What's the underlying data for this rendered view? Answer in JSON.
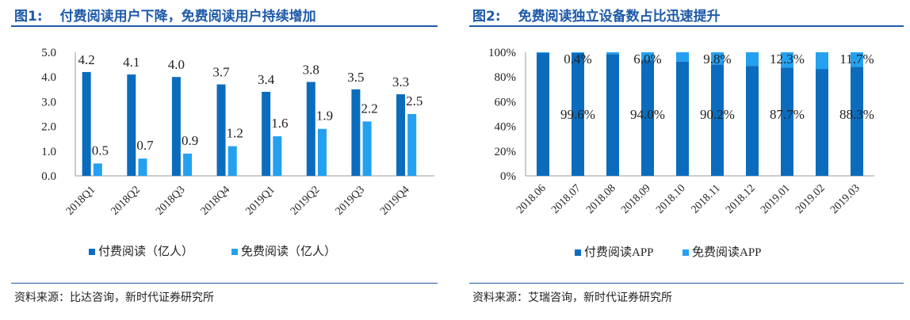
{
  "colors": {
    "accent": "#1e5aa8",
    "dark_blue": "#0b6cbd",
    "light_blue": "#24a0f0"
  },
  "left": {
    "fig_num": "图1:",
    "title": "付费阅读用户下降，免费阅读用户持续增加",
    "source": "资料来源：比达咨询，新时代证券研究所"
  },
  "right": {
    "fig_num": "图2:",
    "title": "免费阅读独立设备数占比迅速提升",
    "source": "资料来源：艾瑞咨询，新时代证券研究所"
  },
  "chart_data": [
    {
      "type": "bar",
      "categories": [
        "2018Q1",
        "2018Q2",
        "2018Q3",
        "2018Q4",
        "2019Q1",
        "2019Q2",
        "2019Q3",
        "2019Q4"
      ],
      "series": [
        {
          "name": "付费阅读（亿人）",
          "values": [
            4.2,
            4.1,
            4.0,
            3.7,
            3.4,
            3.8,
            3.5,
            3.3
          ],
          "color": "#0b6cbd"
        },
        {
          "name": "免费阅读（亿人）",
          "values": [
            0.5,
            0.7,
            0.9,
            1.2,
            1.6,
            1.9,
            2.2,
            2.5
          ],
          "color": "#24a0f0"
        }
      ],
      "ylim": [
        0,
        5
      ],
      "y_ticks": [
        "0.0",
        "1.0",
        "2.0",
        "3.0",
        "4.0",
        "5.0"
      ],
      "grid": false,
      "legend_position": "bottom"
    },
    {
      "type": "bar",
      "stacked": true,
      "categories": [
        "2018.06",
        "2018.07",
        "2018.08",
        "2018.09",
        "2018.10",
        "2018.11",
        "2018.12",
        "2019.01",
        "2019.02",
        "2019.03"
      ],
      "series": [
        {
          "name": "付费阅读APP",
          "values": [
            99.6,
            99.6,
            98.5,
            94.0,
            92.5,
            90.2,
            89.0,
            87.7,
            86.5,
            88.3
          ],
          "color": "#0b6cbd",
          "labels": [
            "",
            "99.6%",
            "",
            "94.0%",
            "",
            "90.2%",
            "",
            "87.7%",
            "",
            "88.3%"
          ]
        },
        {
          "name": "免费阅读APP",
          "values": [
            0.4,
            0.4,
            1.5,
            6.0,
            7.5,
            9.8,
            11.0,
            12.3,
            13.5,
            11.7
          ],
          "color": "#24a0f0",
          "labels": [
            "",
            "0.4%",
            "",
            "6.0%",
            "",
            "9.8%",
            "",
            "12.3%",
            "",
            "11.7%"
          ]
        }
      ],
      "ylim": [
        0,
        100
      ],
      "y_ticks": [
        "0%",
        "20%",
        "40%",
        "60%",
        "80%",
        "100%"
      ],
      "grid": false,
      "legend_position": "bottom"
    }
  ]
}
